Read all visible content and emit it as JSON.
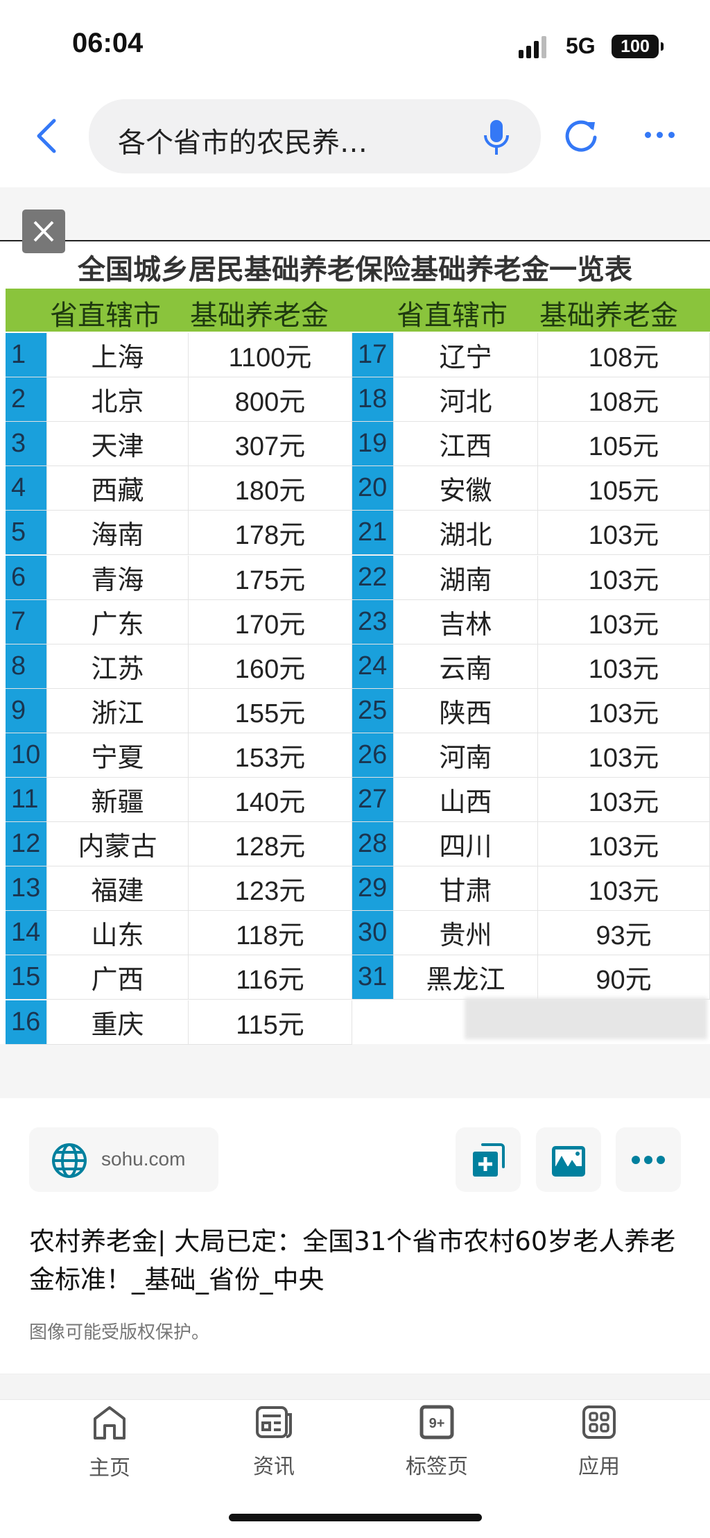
{
  "status_bar": {
    "time": "06:04",
    "network": "5G",
    "battery": "100"
  },
  "browser": {
    "search_text": "各个省市的农民养…",
    "icons": [
      "back-icon",
      "mic-icon",
      "reload-icon",
      "more-icon"
    ]
  },
  "image": {
    "title": "全国城乡居民基础养老保险基础养老金一览表",
    "headers": [
      "省直辖市",
      "基础养老金",
      "省直辖市",
      "基础养老金"
    ],
    "left_rows": [
      {
        "no": "1",
        "province": "上海",
        "amount": "1100元"
      },
      {
        "no": "2",
        "province": "北京",
        "amount": "800元"
      },
      {
        "no": "3",
        "province": "天津",
        "amount": "307元"
      },
      {
        "no": "4",
        "province": "西藏",
        "amount": "180元"
      },
      {
        "no": "5",
        "province": "海南",
        "amount": "178元"
      },
      {
        "no": "6",
        "province": "青海",
        "amount": "175元"
      },
      {
        "no": "7",
        "province": "广东",
        "amount": "170元"
      },
      {
        "no": "8",
        "province": "江苏",
        "amount": "160元"
      },
      {
        "no": "9",
        "province": "浙江",
        "amount": "155元"
      },
      {
        "no": "10",
        "province": "宁夏",
        "amount": "153元"
      },
      {
        "no": "11",
        "province": "新疆",
        "amount": "140元"
      },
      {
        "no": "12",
        "province": "内蒙古",
        "amount": "128元"
      },
      {
        "no": "13",
        "province": "福建",
        "amount": "123元"
      },
      {
        "no": "14",
        "province": "山东",
        "amount": "118元"
      },
      {
        "no": "15",
        "province": "广西",
        "amount": "116元"
      },
      {
        "no": "16",
        "province": "重庆",
        "amount": "115元"
      }
    ],
    "right_rows": [
      {
        "no": "17",
        "province": "辽宁",
        "amount": "108元"
      },
      {
        "no": "18",
        "province": "河北",
        "amount": "108元"
      },
      {
        "no": "19",
        "province": "江西",
        "amount": "105元"
      },
      {
        "no": "20",
        "province": "安徽",
        "amount": "105元"
      },
      {
        "no": "21",
        "province": "湖北",
        "amount": "103元"
      },
      {
        "no": "22",
        "province": "湖南",
        "amount": "103元"
      },
      {
        "no": "23",
        "province": "吉林",
        "amount": "103元"
      },
      {
        "no": "24",
        "province": "云南",
        "amount": "103元"
      },
      {
        "no": "25",
        "province": "陕西",
        "amount": "103元"
      },
      {
        "no": "26",
        "province": "河南",
        "amount": "103元"
      },
      {
        "no": "27",
        "province": "山西",
        "amount": "103元"
      },
      {
        "no": "28",
        "province": "四川",
        "amount": "103元"
      },
      {
        "no": "29",
        "province": "甘肃",
        "amount": "103元"
      },
      {
        "no": "30",
        "province": "贵州",
        "amount": "93元"
      },
      {
        "no": "31",
        "province": "黑龙江",
        "amount": "90元"
      }
    ],
    "colors": {
      "header": "#8ac43c",
      "number_column": "#1aa0dc"
    }
  },
  "result": {
    "source": "sohu.com",
    "title": "农村养老金| 大局已定：全国31个省市农村60岁老人养老金标准！_基础_省份_中央",
    "copyright": "图像可能受版权保护。",
    "accent": "#00809e"
  },
  "bottom_nav": [
    {
      "label": "主页",
      "icon": "home-icon"
    },
    {
      "label": "资讯",
      "icon": "news-icon"
    },
    {
      "label": "标签页",
      "icon": "tabs-icon",
      "badge": "9+"
    },
    {
      "label": "应用",
      "icon": "apps-icon"
    }
  ]
}
